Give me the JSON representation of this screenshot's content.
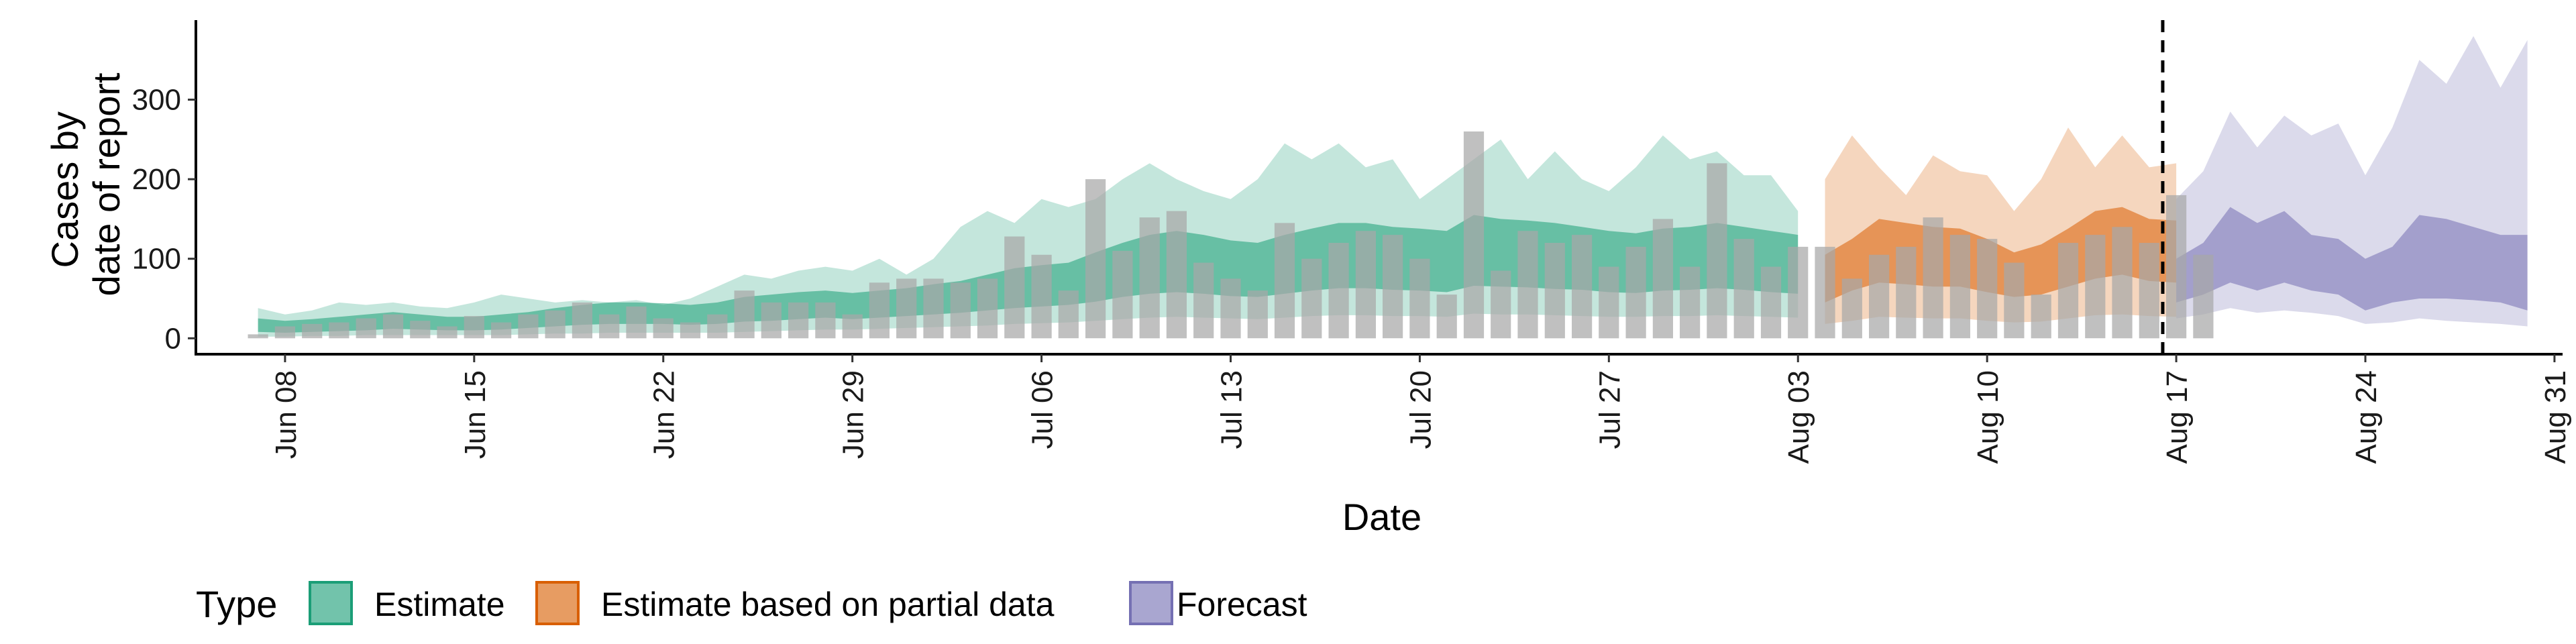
{
  "chart_data": {
    "type": "area",
    "xlabel": "Date",
    "ylabel": [
      "Cases by",
      "date of report"
    ],
    "ylim": [
      -20,
      400
    ],
    "y_ticks": [
      0,
      100,
      200,
      300
    ],
    "x_ticks": [
      "Jun 08",
      "Jun 15",
      "Jun 22",
      "Jun 29",
      "Jul 06",
      "Jul 13",
      "Jul 20",
      "Jul 27",
      "Aug 03",
      "Aug 10",
      "Aug 17",
      "Aug 24",
      "Aug 31"
    ],
    "x_start_label": "Jun 06",
    "x_range_days": [
      -1.3,
      86.3
    ],
    "forecast_line_day": 71.5,
    "colors": {
      "Estimate": "#1b9e77",
      "Estimate based on partial data": "#d95f02",
      "Forecast": "#7570b3",
      "bars": "#a8a8a8"
    },
    "legend": {
      "title": "Type",
      "position": "bottom",
      "items": [
        "Estimate",
        "Estimate based on partial data",
        "Forecast"
      ]
    },
    "reported_cases": {
      "start_label": "Jun 07",
      "values": [
        5,
        15,
        18,
        20,
        25,
        30,
        22,
        15,
        28,
        20,
        30,
        35,
        45,
        30,
        40,
        25,
        20,
        30,
        60,
        45,
        45,
        45,
        30,
        70,
        75,
        75,
        70,
        75,
        128,
        105,
        60,
        200,
        110,
        152,
        160,
        95,
        75,
        60,
        145,
        100,
        120,
        135,
        130,
        100,
        55,
        260,
        85,
        135,
        120,
        130,
        90,
        115,
        150,
        90,
        220,
        125,
        90,
        115,
        115,
        75,
        105,
        115,
        152,
        130,
        125,
        95,
        55,
        120,
        130,
        140,
        120,
        180,
        105
      ]
    },
    "series": [
      {
        "name": "Estimate",
        "start_label": "Jun 07",
        "median": [
          15,
          14,
          16,
          18,
          20,
          22,
          20,
          18,
          18,
          20,
          22,
          26,
          28,
          30,
          30,
          30,
          28,
          30,
          34,
          36,
          38,
          40,
          38,
          40,
          42,
          45,
          48,
          52,
          58,
          60,
          62,
          70,
          78,
          85,
          88,
          85,
          80,
          78,
          85,
          90,
          95,
          95,
          92,
          90,
          88,
          100,
          98,
          96,
          94,
          92,
          88,
          86,
          90,
          92,
          95,
          92,
          88,
          85
        ],
        "lower50": [
          8,
          7,
          8,
          9,
          10,
          12,
          11,
          10,
          10,
          11,
          13,
          15,
          17,
          18,
          18,
          18,
          17,
          18,
          21,
          22,
          24,
          26,
          24,
          26,
          28,
          30,
          32,
          35,
          38,
          40,
          42,
          46,
          52,
          56,
          58,
          56,
          53,
          52,
          56,
          60,
          63,
          63,
          61,
          60,
          58,
          66,
          65,
          64,
          62,
          61,
          58,
          57,
          60,
          61,
          63,
          61,
          58,
          56
        ],
        "upper50": [
          25,
          22,
          24,
          27,
          30,
          33,
          30,
          27,
          27,
          30,
          33,
          38,
          42,
          45,
          45,
          44,
          42,
          45,
          52,
          55,
          58,
          60,
          57,
          60,
          63,
          68,
          72,
          80,
          88,
          92,
          95,
          108,
          120,
          130,
          135,
          130,
          123,
          120,
          130,
          138,
          145,
          145,
          140,
          138,
          135,
          155,
          150,
          148,
          145,
          140,
          135,
          132,
          138,
          140,
          145,
          140,
          135,
          130
        ],
        "lower90": [
          2,
          2,
          3,
          3,
          4,
          4,
          4,
          4,
          4,
          4,
          5,
          6,
          6,
          7,
          7,
          7,
          7,
          7,
          8,
          9,
          10,
          11,
          11,
          12,
          13,
          14,
          15,
          16,
          18,
          19,
          20,
          22,
          24,
          26,
          27,
          26,
          25,
          24,
          26,
          28,
          29,
          29,
          28,
          28,
          27,
          31,
          30,
          30,
          29,
          28,
          27,
          27,
          28,
          28,
          29,
          28,
          27,
          26
        ],
        "upper90": [
          38,
          30,
          35,
          45,
          42,
          45,
          40,
          38,
          45,
          55,
          50,
          45,
          48,
          45,
          48,
          42,
          50,
          65,
          80,
          75,
          85,
          90,
          85,
          100,
          80,
          100,
          140,
          160,
          145,
          175,
          165,
          175,
          200,
          220,
          200,
          185,
          175,
          200,
          245,
          225,
          245,
          215,
          225,
          175,
          200,
          225,
          250,
          200,
          235,
          200,
          185,
          215,
          255,
          225,
          235,
          205,
          205,
          160
        ]
      },
      {
        "name": "Estimate based on partial data",
        "start_label": "Aug 04",
        "median": [
          75,
          90,
          110,
          105,
          100,
          100,
          90,
          80,
          85,
          100,
          115,
          120,
          110,
          108
        ],
        "lower50": [
          45,
          60,
          70,
          68,
          65,
          65,
          58,
          52,
          55,
          65,
          75,
          80,
          72,
          70
        ],
        "upper50": [
          105,
          125,
          150,
          145,
          140,
          138,
          125,
          108,
          118,
          138,
          160,
          165,
          150,
          148
        ],
        "lower90": [
          18,
          22,
          27,
          26,
          25,
          25,
          22,
          20,
          21,
          25,
          29,
          30,
          28,
          27
        ],
        "upper90": [
          200,
          255,
          215,
          180,
          230,
          210,
          205,
          160,
          200,
          265,
          215,
          255,
          215,
          220
        ]
      },
      {
        "name": "Forecast",
        "start_label": "Aug 17",
        "median": [
          70,
          85,
          115,
          100,
          110,
          95,
          85,
          70,
          80,
          110,
          105,
          95,
          92,
          80
        ],
        "lower50": [
          45,
          55,
          70,
          60,
          70,
          60,
          55,
          35,
          45,
          50,
          50,
          48,
          45,
          35
        ],
        "upper50": [
          100,
          120,
          165,
          145,
          160,
          130,
          125,
          100,
          115,
          155,
          150,
          140,
          130,
          130
        ],
        "lower90": [
          25,
          30,
          38,
          32,
          35,
          32,
          28,
          18,
          20,
          25,
          22,
          20,
          18,
          15
        ],
        "upper90": [
          175,
          210,
          285,
          240,
          280,
          255,
          270,
          205,
          265,
          350,
          320,
          380,
          315,
          375
        ]
      }
    ]
  }
}
